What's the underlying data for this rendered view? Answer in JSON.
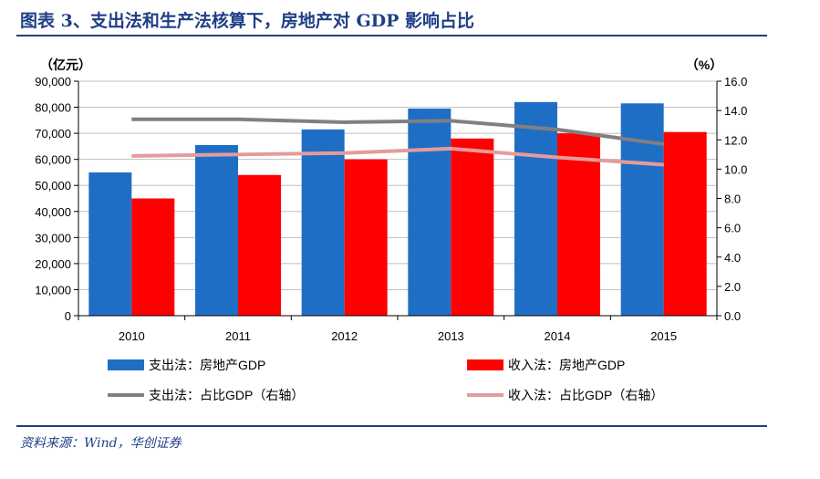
{
  "figure": {
    "title": "图表 3、支出法和生产法核算下，房地产对 GDP 影响占比",
    "source": "资料来源：Wind，华创证券"
  },
  "chart_data": {
    "type": "bar",
    "categories": [
      "2010",
      "2011",
      "2012",
      "2013",
      "2014",
      "2015"
    ],
    "ylabel_left": "（亿元）",
    "ylabel_right": "（%）",
    "ylim_left": [
      0,
      90000
    ],
    "ylim_right": [
      0,
      16
    ],
    "y_ticks_left": [
      "0",
      "10,000",
      "20,000",
      "30,000",
      "40,000",
      "50,000",
      "60,000",
      "70,000",
      "80,000",
      "90,000"
    ],
    "y_ticks_right": [
      "0.0",
      "2.0",
      "4.0",
      "6.0",
      "8.0",
      "10.0",
      "12.0",
      "14.0",
      "16.0"
    ],
    "grid": true,
    "legend_position": "bottom",
    "series": [
      {
        "name": "支出法：房地产GDP",
        "type": "bar",
        "axis": "left",
        "color": "#1f6ec6",
        "values": [
          55000,
          65500,
          71500,
          79500,
          82000,
          81500
        ]
      },
      {
        "name": "收入法：房地产GDP",
        "type": "bar",
        "axis": "left",
        "color": "#ff0000",
        "values": [
          45000,
          54000,
          60000,
          68000,
          70000,
          70500
        ]
      },
      {
        "name": "支出法：占比GDP（右轴）",
        "type": "line",
        "axis": "right",
        "color": "#808080",
        "values": [
          13.4,
          13.4,
          13.2,
          13.3,
          12.7,
          11.7
        ]
      },
      {
        "name": "收入法：占比GDP（右轴）",
        "type": "line",
        "axis": "right",
        "color": "#e59b9b",
        "values": [
          10.9,
          11.0,
          11.1,
          11.4,
          10.8,
          10.3
        ]
      }
    ]
  }
}
